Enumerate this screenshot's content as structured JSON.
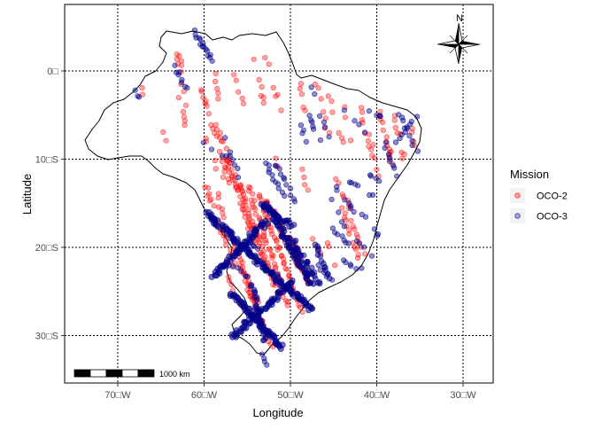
{
  "map": {
    "xlabel": "Longitude",
    "ylabel": "Latitude",
    "x_ticks": [
      {
        "lon": -70,
        "label": "70□W"
      },
      {
        "lon": -60,
        "label": "60□W"
      },
      {
        "lon": -50,
        "label": "50□W"
      },
      {
        "lon": -40,
        "label": "40□W"
      },
      {
        "lon": -30,
        "label": "30□W"
      }
    ],
    "y_ticks": [
      {
        "lat": 0,
        "label": "0□"
      },
      {
        "lat": -10,
        "label": "10□S"
      },
      {
        "lat": -20,
        "label": "20□S"
      },
      {
        "lat": -30,
        "label": "30□S"
      }
    ],
    "north_arrow_label": "N",
    "scale_bar_label": "1000 km",
    "legend": {
      "title": "Mission",
      "items": [
        {
          "label": "OCO-2",
          "color": "#ff0000"
        },
        {
          "label": "OCO-3",
          "color": "#00008b"
        }
      ]
    },
    "colors": {
      "oco2": "#ff0000",
      "oco3": "#00008b",
      "grid": "#000000",
      "border": "#000000"
    }
  }
}
